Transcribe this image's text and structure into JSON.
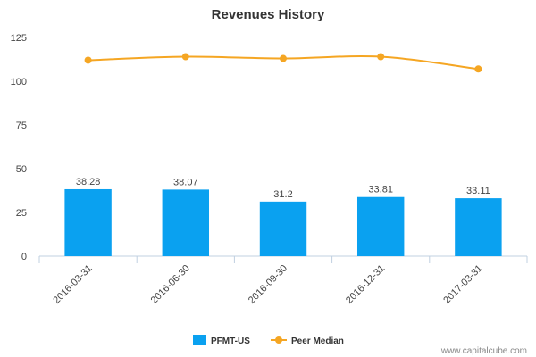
{
  "chart_data": {
    "type": "bar",
    "title": "Revenues History",
    "xlabel": "",
    "ylabel": "",
    "ylim": [
      0,
      125
    ],
    "yticks": [
      0,
      25,
      50,
      75,
      100,
      125
    ],
    "categories": [
      "2016-03-31",
      "2016-06-30",
      "2016-09-30",
      "2016-12-31",
      "2017-03-31"
    ],
    "series": [
      {
        "name": "PFMT-US",
        "type": "bar",
        "color": "#0aa1f0",
        "values": [
          38.28,
          38.07,
          31.2,
          33.81,
          33.11
        ],
        "labels": [
          "38.28",
          "38.07",
          "31.2",
          "33.81",
          "33.11"
        ]
      },
      {
        "name": "Peer Median",
        "type": "line",
        "color": "#f5a623",
        "values": [
          112,
          114,
          113,
          114,
          107
        ]
      }
    ],
    "grid": false,
    "legend": "bottom"
  },
  "credit": "www.capitalcube.com"
}
